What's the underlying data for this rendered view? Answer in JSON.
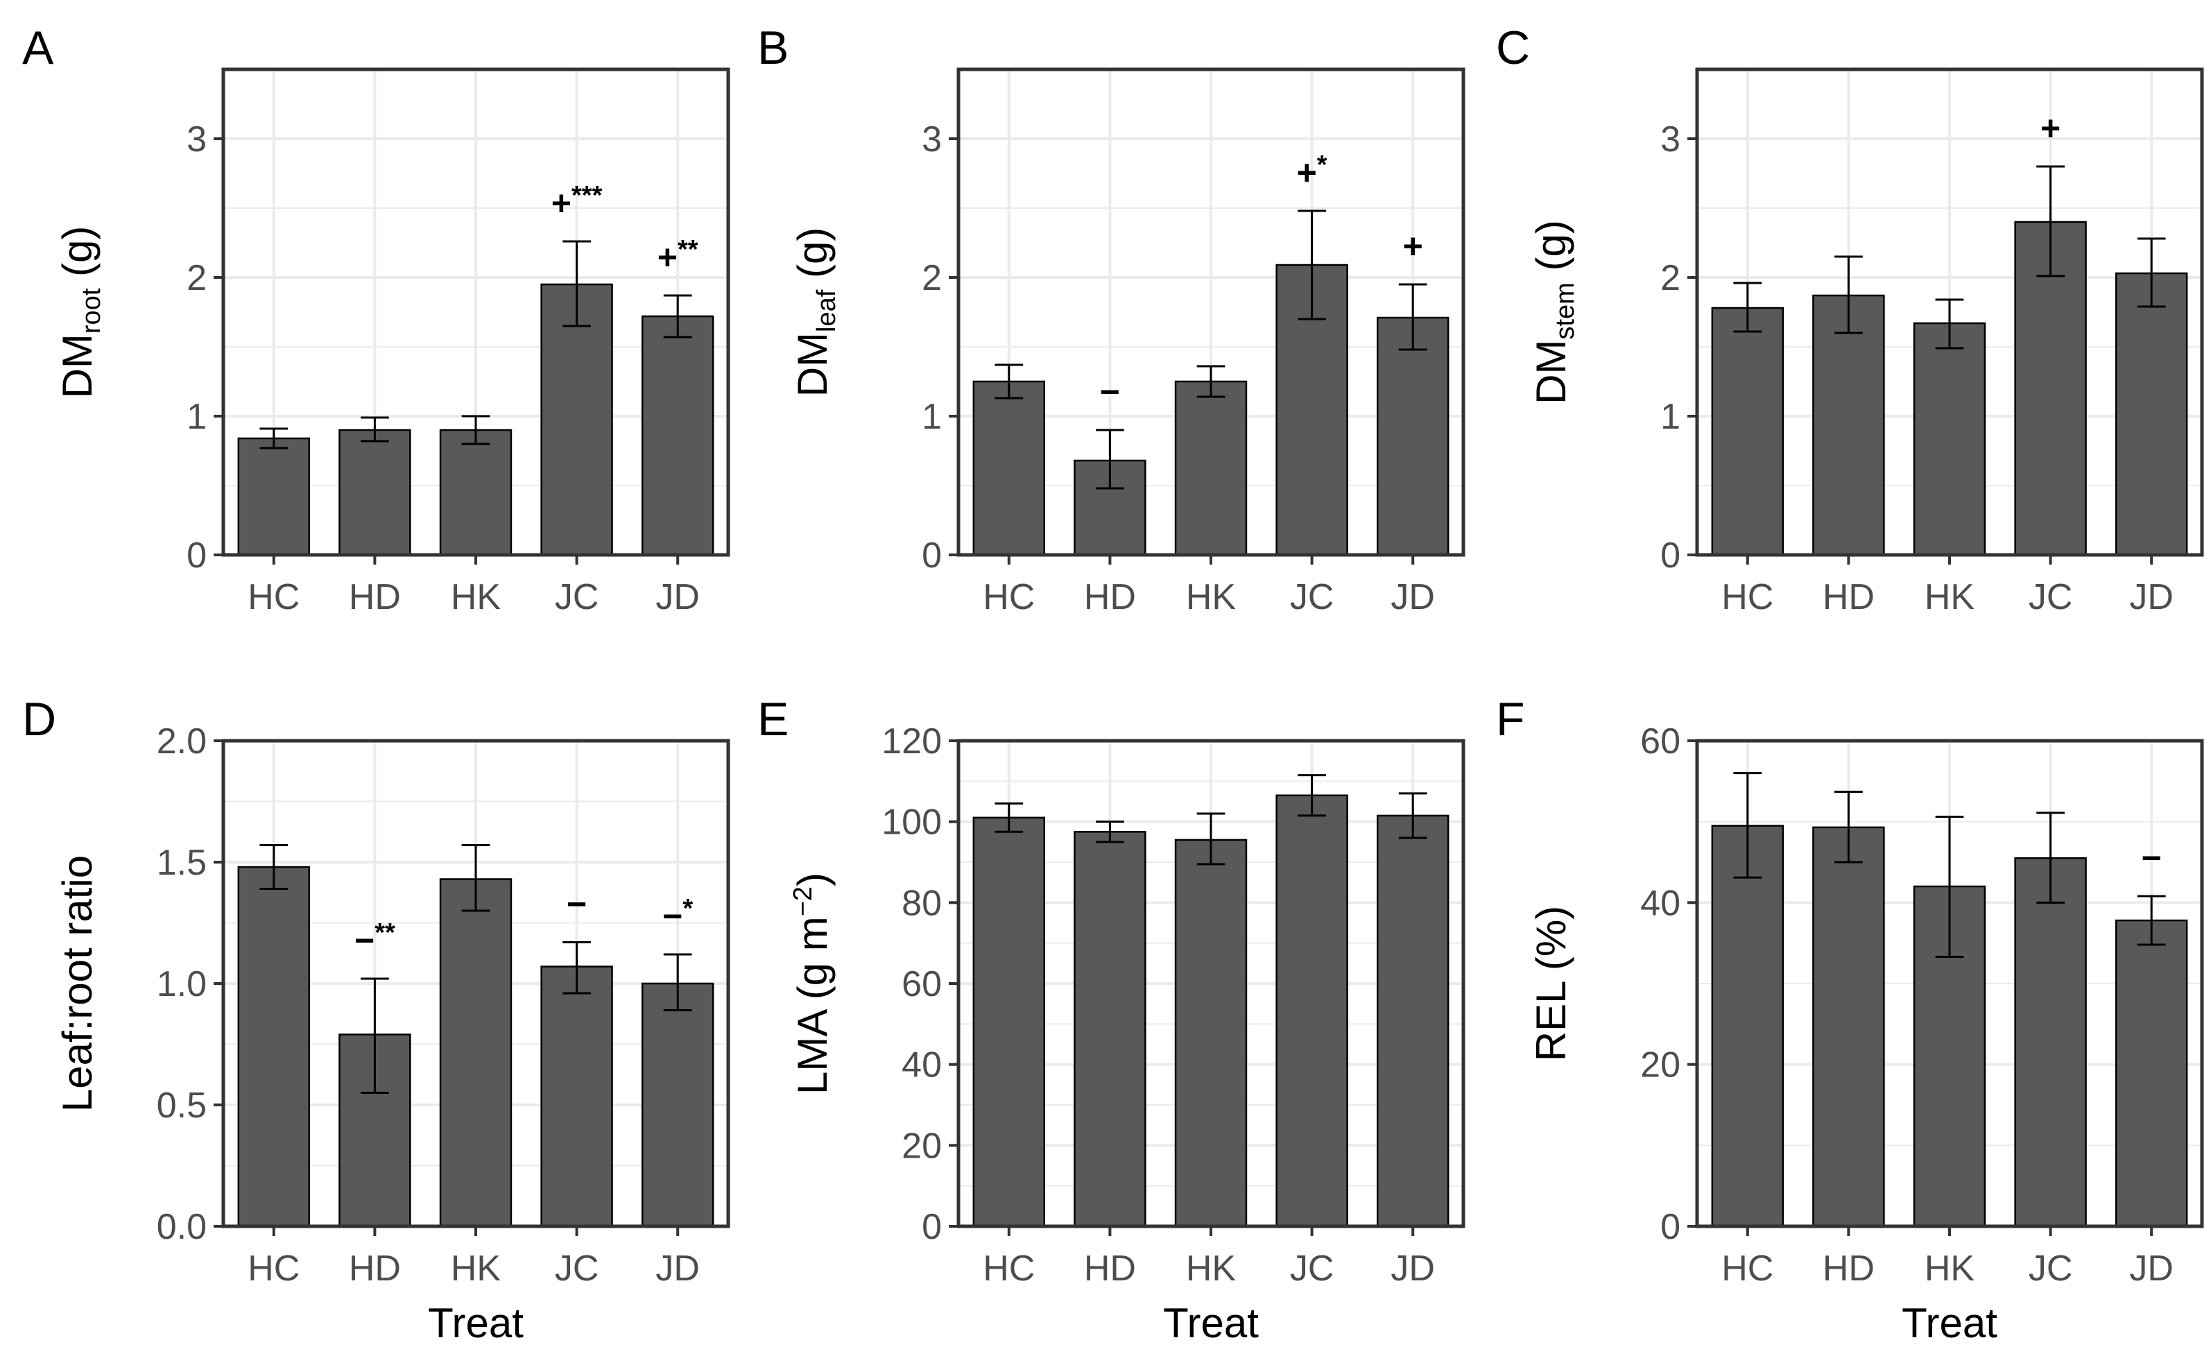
{
  "chart_data": [
    {
      "panel": "A",
      "type": "bar",
      "ylabel": {
        "main": "DM",
        "sub": "root",
        "unit": " (g)"
      },
      "xlabel": "",
      "categories": [
        "HC",
        "HD",
        "HK",
        "JC",
        "JD"
      ],
      "values": [
        0.84,
        0.9,
        0.9,
        1.95,
        1.72
      ],
      "error": [
        [
          0.77,
          0.91
        ],
        [
          0.82,
          0.99
        ],
        [
          0.8,
          1.0
        ],
        [
          1.65,
          2.26
        ],
        [
          1.57,
          1.87
        ]
      ],
      "annotations": [
        {
          "category": "JC",
          "sign": "+",
          "stars": "***"
        },
        {
          "category": "JD",
          "sign": "+",
          "stars": "**"
        }
      ],
      "ylim": [
        0,
        3.5
      ],
      "yticks": [
        0,
        1,
        2,
        3
      ],
      "ytick_labels": [
        "0",
        "1",
        "2",
        "3"
      ],
      "grid": true
    },
    {
      "panel": "B",
      "type": "bar",
      "ylabel": {
        "main": "DM",
        "sub": "leaf",
        "unit": " (g)"
      },
      "xlabel": "",
      "categories": [
        "HC",
        "HD",
        "HK",
        "JC",
        "JD"
      ],
      "values": [
        1.25,
        0.68,
        1.25,
        2.09,
        1.71
      ],
      "error": [
        [
          1.13,
          1.37
        ],
        [
          0.48,
          0.9
        ],
        [
          1.14,
          1.36
        ],
        [
          1.7,
          2.48
        ],
        [
          1.48,
          1.95
        ]
      ],
      "annotations": [
        {
          "category": "HD",
          "sign": "−",
          "stars": ""
        },
        {
          "category": "JC",
          "sign": "+",
          "stars": "*"
        },
        {
          "category": "JD",
          "sign": "+",
          "stars": ""
        }
      ],
      "ylim": [
        0,
        3.5
      ],
      "yticks": [
        0,
        1,
        2,
        3
      ],
      "ytick_labels": [
        "0",
        "1",
        "2",
        "3"
      ],
      "grid": true
    },
    {
      "panel": "C",
      "type": "bar",
      "ylabel": {
        "main": "DM",
        "sub": "stem",
        "unit": " (g)"
      },
      "xlabel": "",
      "categories": [
        "HC",
        "HD",
        "HK",
        "JC",
        "JD"
      ],
      "values": [
        1.78,
        1.87,
        1.67,
        2.4,
        2.03
      ],
      "error": [
        [
          1.61,
          1.96
        ],
        [
          1.6,
          2.15
        ],
        [
          1.49,
          1.84
        ],
        [
          2.01,
          2.8
        ],
        [
          1.79,
          2.28
        ]
      ],
      "annotations": [
        {
          "category": "JC",
          "sign": "+",
          "stars": ""
        }
      ],
      "ylim": [
        0,
        3.5
      ],
      "yticks": [
        0,
        1,
        2,
        3
      ],
      "ytick_labels": [
        "0",
        "1",
        "2",
        "3"
      ],
      "grid": true
    },
    {
      "panel": "D",
      "type": "bar",
      "ylabel": {
        "main": "Leaf:root ratio",
        "sub": "",
        "unit": ""
      },
      "xlabel": "Treat",
      "categories": [
        "HC",
        "HD",
        "HK",
        "JC",
        "JD"
      ],
      "values": [
        1.48,
        0.79,
        1.43,
        1.07,
        1.0
      ],
      "error": [
        [
          1.39,
          1.57
        ],
        [
          0.55,
          1.02
        ],
        [
          1.3,
          1.57
        ],
        [
          0.96,
          1.17
        ],
        [
          0.89,
          1.12
        ]
      ],
      "annotations": [
        {
          "category": "HD",
          "sign": "−",
          "stars": "**"
        },
        {
          "category": "JC",
          "sign": "−",
          "stars": ""
        },
        {
          "category": "JD",
          "sign": "−",
          "stars": "*"
        }
      ],
      "ylim": [
        0,
        2.0
      ],
      "yticks": [
        0,
        0.5,
        1.0,
        1.5,
        2.0
      ],
      "ytick_labels": [
        "0.0",
        "0.5",
        "1.0",
        "1.5",
        "2.0"
      ],
      "grid": true
    },
    {
      "panel": "E",
      "type": "bar",
      "ylabel": {
        "main": "LMA (g m",
        "sup": "−2",
        "unit": ")"
      },
      "xlabel": "Treat",
      "categories": [
        "HC",
        "HD",
        "HK",
        "JC",
        "JD"
      ],
      "values": [
        101,
        97.5,
        95.5,
        106.5,
        101.5
      ],
      "error": [
        [
          97.5,
          104.5
        ],
        [
          95,
          100
        ],
        [
          89.5,
          102
        ],
        [
          101.5,
          111.5
        ],
        [
          96,
          107
        ]
      ],
      "annotations": [],
      "ylim": [
        0,
        120
      ],
      "yticks": [
        0,
        20,
        40,
        60,
        80,
        100,
        120
      ],
      "ytick_labels": [
        "0",
        "20",
        "40",
        "60",
        "80",
        "100",
        "120"
      ],
      "grid": true
    },
    {
      "panel": "F",
      "type": "bar",
      "ylabel": {
        "main": "REL (%)",
        "sub": "",
        "unit": ""
      },
      "xlabel": "Treat",
      "categories": [
        "HC",
        "HD",
        "HK",
        "JC",
        "JD"
      ],
      "values": [
        49.5,
        49.3,
        42.0,
        45.5,
        37.8
      ],
      "error": [
        [
          43.1,
          56.0
        ],
        [
          45.0,
          53.7
        ],
        [
          33.3,
          50.6
        ],
        [
          40.0,
          51.1
        ],
        [
          34.8,
          40.8
        ]
      ],
      "annotations": [
        {
          "category": "JD",
          "sign": "−",
          "stars": ""
        }
      ],
      "ylim": [
        0,
        60
      ],
      "yticks": [
        0,
        20,
        40,
        60
      ],
      "ytick_labels": [
        "0",
        "20",
        "40",
        "60"
      ],
      "grid": true
    }
  ]
}
